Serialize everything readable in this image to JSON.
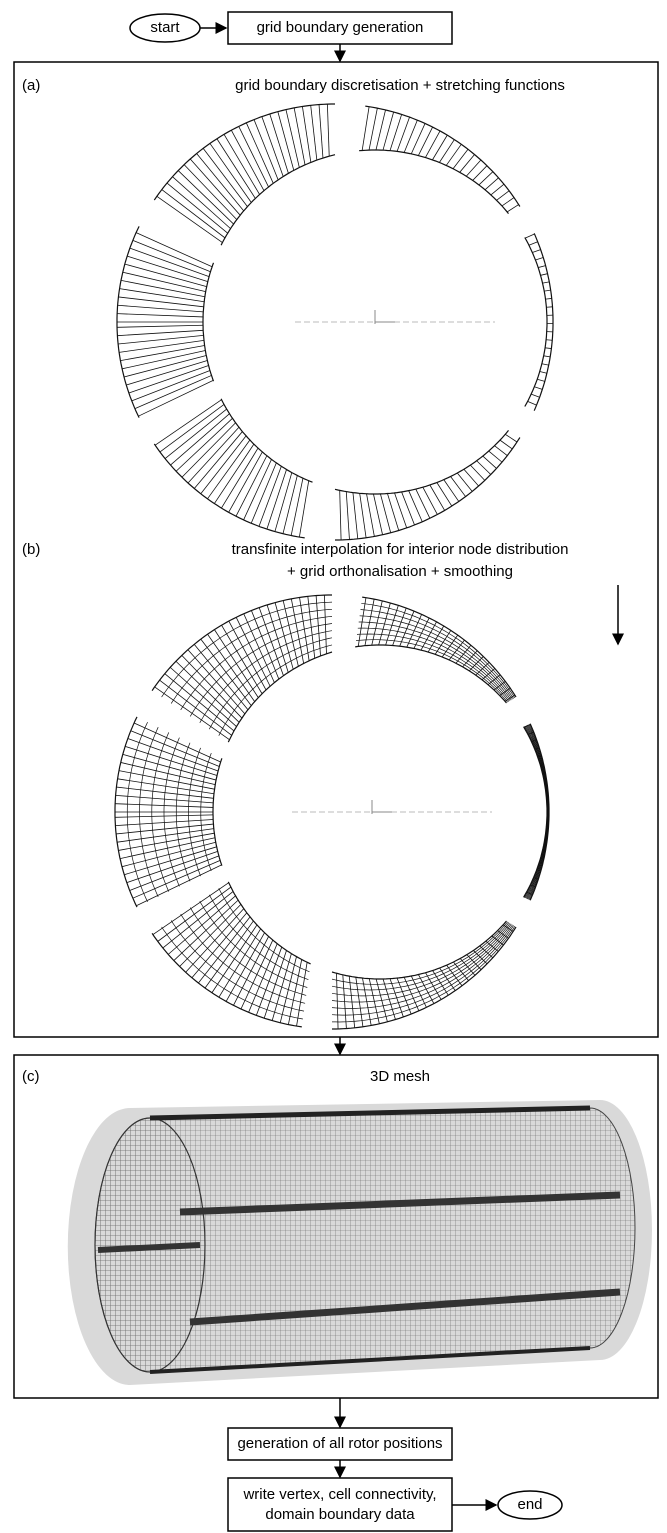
{
  "flow": {
    "start": "start",
    "step1": "grid boundary generation",
    "panel_a": {
      "label": "(a)",
      "title": "grid boundary discretisation + stretching functions"
    },
    "panel_b": {
      "label": "(b)",
      "title_lines": [
        "transfinite interpolation for interior node distribution",
        "+ grid orthonalisation + smoothing"
      ]
    },
    "panel_c": {
      "label": "(c)",
      "title": "3D mesh"
    },
    "step2": "generation of all rotor positions",
    "step3_lines": [
      "write vertex, cell connectivity,",
      "domain boundary data"
    ],
    "end": "end"
  }
}
